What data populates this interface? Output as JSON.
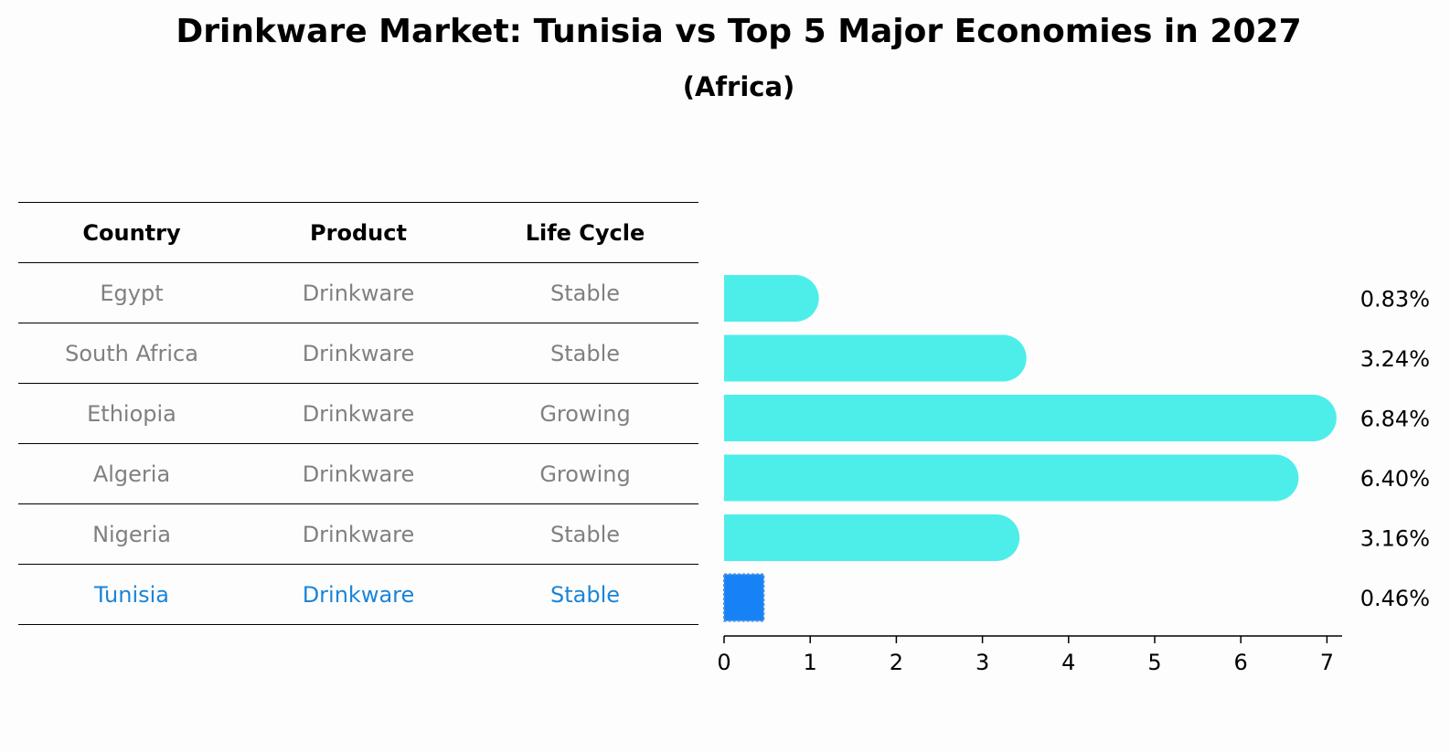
{
  "title": "Drinkware Market: Tunisia vs Top 5 Major Economies in 2027",
  "subtitle": "(Africa)",
  "table": {
    "headers": [
      "Country",
      "Product",
      "Life Cycle"
    ],
    "rows": [
      [
        "Egypt",
        "Drinkware",
        "Stable"
      ],
      [
        "South Africa",
        "Drinkware",
        "Stable"
      ],
      [
        "Ethiopia",
        "Drinkware",
        "Growing"
      ],
      [
        "Algeria",
        "Drinkware",
        "Growing"
      ],
      [
        "Nigeria",
        "Drinkware",
        "Stable"
      ],
      [
        "Tunisia",
        "Drinkware",
        "Stable"
      ]
    ],
    "highlight_row": 5
  },
  "chart_data": {
    "type": "bar",
    "orientation": "horizontal",
    "categories": [
      "Egypt",
      "South Africa",
      "Ethiopia",
      "Algeria",
      "Nigeria",
      "Tunisia"
    ],
    "values": [
      0.83,
      3.24,
      6.84,
      6.4,
      3.16,
      0.46
    ],
    "value_labels": [
      "0.83%",
      "3.24%",
      "6.84%",
      "6.40%",
      "3.16%",
      "0.46%"
    ],
    "xlim": [
      0,
      7.2
    ],
    "xticks": [
      "0",
      "1",
      "2",
      "3",
      "4",
      "5",
      "6",
      "7"
    ],
    "colors": {
      "default": "#4deeea",
      "highlight": "#1682f5"
    },
    "highlight_index": 5,
    "grid": false
  }
}
